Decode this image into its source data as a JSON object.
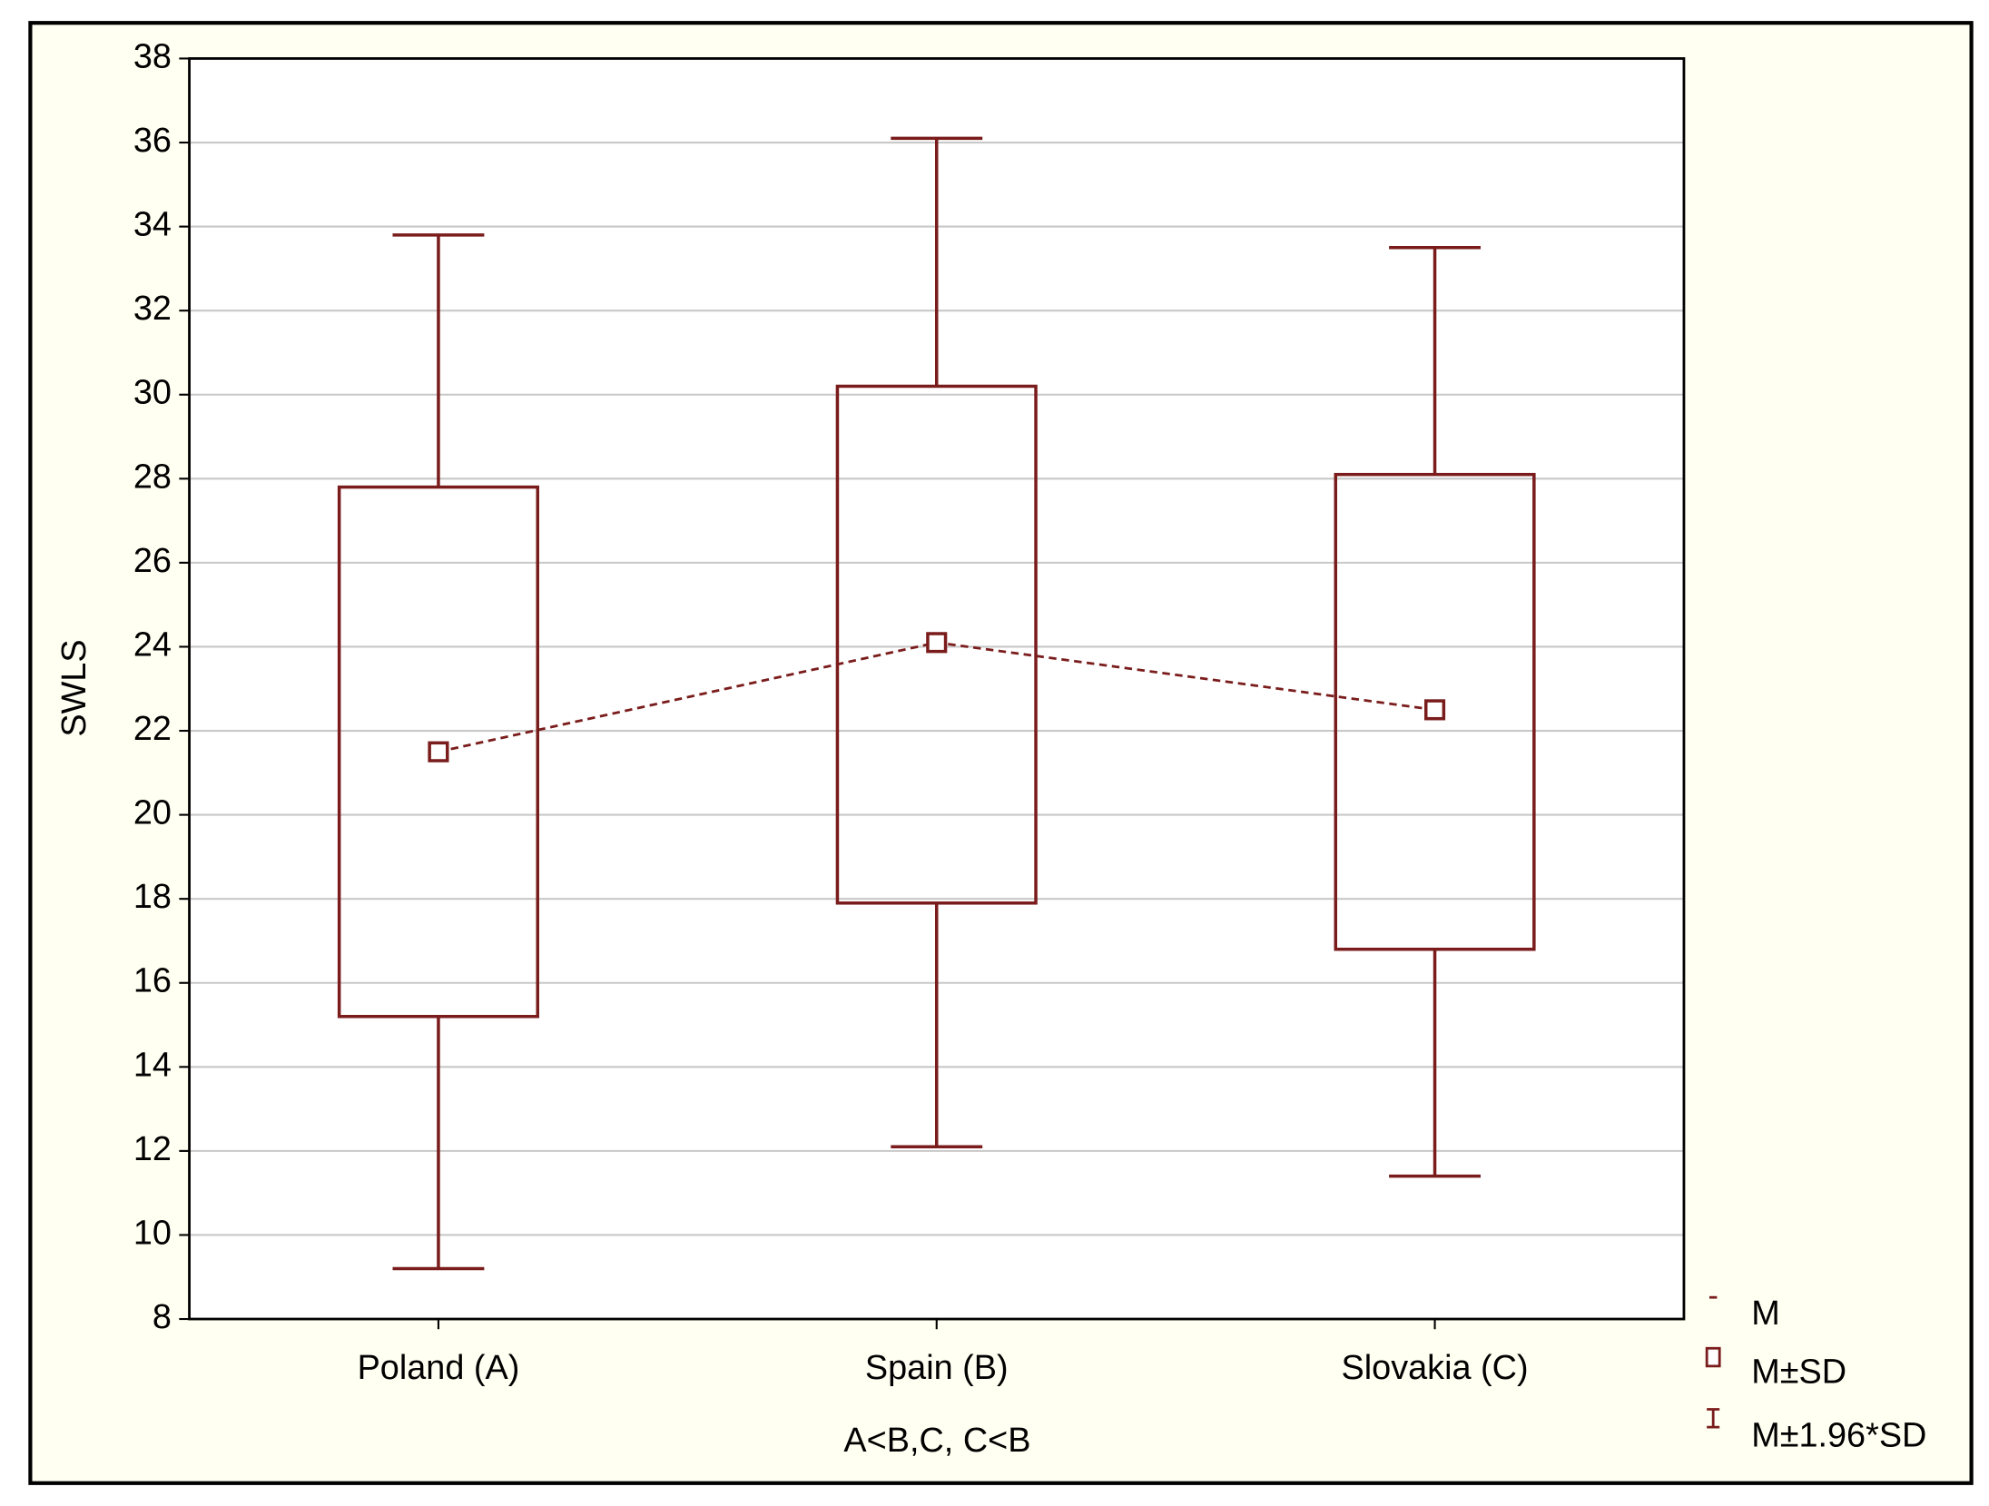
{
  "chart_data": {
    "type": "box",
    "y_label": "SWLS",
    "x_label": "A<B,C, C<B",
    "categories": [
      "Poland (A)",
      "Spain (B)",
      "Slovakia (C)"
    ],
    "mean": [
      21.5,
      24.1,
      22.5
    ],
    "sd_low": [
      15.2,
      17.9,
      16.8
    ],
    "sd_high": [
      27.8,
      30.2,
      28.1
    ],
    "ci_low": [
      9.2,
      12.1,
      11.4
    ],
    "ci_high": [
      33.8,
      36.1,
      33.5
    ],
    "color": "#7a1c1c",
    "ylim": [
      8,
      38
    ],
    "yticks": [
      8,
      10,
      12,
      14,
      16,
      18,
      20,
      22,
      24,
      26,
      28,
      30,
      32,
      34,
      36,
      38
    ],
    "grid": true,
    "legend": [
      "M",
      "M±SD",
      "M±1.96*SD"
    ]
  }
}
